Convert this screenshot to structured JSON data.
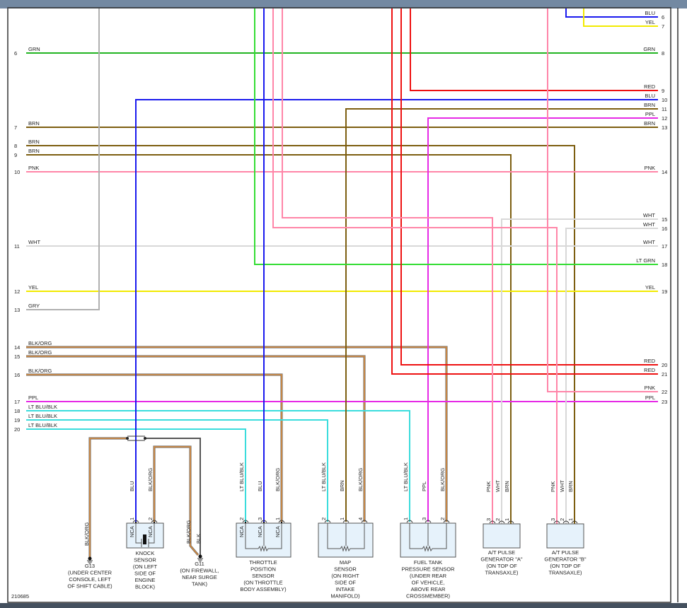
{
  "diagram_id": "210685",
  "colors": {
    "GRN": "#22b422",
    "BRN": "#7d5e10",
    "PNK": "#ff85a8",
    "WHT": "#d8d8d8",
    "YEL": "#f2ea00",
    "GRY": "#b0b0b0",
    "BLKORG": "#d88a3a",
    "PPL": "#e62ae6",
    "LTBLU": "#3adcdc",
    "BLU": "#1a1aee",
    "RED": "#ee1111",
    "LTGRN": "#33dd33",
    "BLK": "#555555"
  },
  "left_pins": [
    {
      "pin": "6",
      "label": "GRN"
    },
    {
      "pin": "7",
      "label": "BRN"
    },
    {
      "pin": "8",
      "label": "BRN"
    },
    {
      "pin": "9",
      "label": "BRN"
    },
    {
      "pin": "10",
      "label": "PNK"
    },
    {
      "pin": "11",
      "label": "WHT"
    },
    {
      "pin": "12",
      "label": "YEL"
    },
    {
      "pin": "13",
      "label": "GRY"
    },
    {
      "pin": "14",
      "label": "BLK/ORG"
    },
    {
      "pin": "15",
      "label": "BLK/ORG"
    },
    {
      "pin": "16",
      "label": "BLK/ORG"
    },
    {
      "pin": "17",
      "label": "PPL"
    },
    {
      "pin": "18",
      "label": "LT BLU/BLK"
    },
    {
      "pin": "19",
      "label": "LT BLU/BLK"
    },
    {
      "pin": "20",
      "label": "LT BLU/BLK"
    }
  ],
  "right_pins": [
    {
      "pin": "6",
      "label": "BLU"
    },
    {
      "pin": "7",
      "label": "YEL"
    },
    {
      "pin": "8",
      "label": "GRN"
    },
    {
      "pin": "9",
      "label": "RED"
    },
    {
      "pin": "10",
      "label": "BLU"
    },
    {
      "pin": "11",
      "label": "BRN"
    },
    {
      "pin": "12",
      "label": "PPL"
    },
    {
      "pin": "13",
      "label": "BRN"
    },
    {
      "pin": "14",
      "label": "PNK"
    },
    {
      "pin": "15",
      "label": "WHT"
    },
    {
      "pin": "16",
      "label": "WHT"
    },
    {
      "pin": "17",
      "label": "WHT"
    },
    {
      "pin": "18",
      "label": "LT GRN"
    },
    {
      "pin": "19",
      "label": "YEL"
    },
    {
      "pin": "20",
      "label": "RED"
    },
    {
      "pin": "21",
      "label": "RED"
    },
    {
      "pin": "22",
      "label": "PNK"
    },
    {
      "pin": "23",
      "label": "PPL"
    }
  ],
  "components": [
    {
      "id": "knock-sensor",
      "caption": [
        "KNOCK",
        "SENSOR",
        "(ON LEFT",
        "SIDE OF",
        "ENGINE",
        "BLOCK)"
      ],
      "pins": [
        {
          "num": "1",
          "wire": "BLU",
          "nca": "NCA"
        },
        {
          "num": "2",
          "wire": "BLK/ORG",
          "nca": "NCA"
        }
      ]
    },
    {
      "id": "throttle-position-sensor",
      "caption": [
        "THROTTLE",
        "POSITION",
        "SENSOR",
        "(ON THROTTLE",
        "BODY ASSEMBLY)"
      ],
      "pins": [
        {
          "num": "2",
          "wire": "LT BLU/BLK",
          "nca": "NCA"
        },
        {
          "num": "3",
          "wire": "BLU",
          "nca": "NCA"
        },
        {
          "num": "1",
          "wire": "BLK/ORG",
          "nca": "NCA"
        }
      ]
    },
    {
      "id": "map-sensor",
      "caption": [
        "MAP",
        "SENSOR",
        "(ON RIGHT",
        "SIDE OF",
        "INTAKE",
        "MANIFOLD)"
      ],
      "pins": [
        {
          "num": "2",
          "wire": "LT BLU/BLK"
        },
        {
          "num": "1",
          "wire": "BRN"
        },
        {
          "num": "4",
          "wire": "BLK/ORG"
        }
      ]
    },
    {
      "id": "fuel-tank-pressure-sensor",
      "caption": [
        "FUEL TANK",
        "PRESSURE SENSOR",
        "(UNDER REAR",
        "OF VEHICLE,",
        "ABOVE REAR",
        "CROSSMEMBER)"
      ],
      "pins": [
        {
          "num": "1",
          "wire": "LT BLU/BLK"
        },
        {
          "num": "3",
          "wire": "PPL"
        },
        {
          "num": "2",
          "wire": "BLK/ORG"
        }
      ]
    },
    {
      "id": "at-pulse-generator-a",
      "caption": [
        "A/T PULSE",
        "GENERATOR \"A\"",
        "(ON TOP OF",
        "TRANSAXLE)"
      ],
      "pins": [
        {
          "num": "3",
          "wire": "PNK"
        },
        {
          "num": "2",
          "wire": "WHT"
        },
        {
          "num": "1",
          "wire": "BRN"
        }
      ]
    },
    {
      "id": "at-pulse-generator-b",
      "caption": [
        "A/T PULSE",
        "GENERATOR \"B\"",
        "(ON TOP OF",
        "TRANSAXLE)"
      ],
      "pins": [
        {
          "num": "3",
          "wire": "PNK"
        },
        {
          "num": "2",
          "wire": "WHT"
        },
        {
          "num": "1",
          "wire": "BRN"
        }
      ]
    }
  ],
  "grounds": [
    {
      "id": "G13",
      "wires": [
        "BLK/ORG"
      ],
      "caption": [
        "G13",
        "(UNDER CENTER",
        "CONSOLE, LEFT",
        "OF SHIFT CABLE)"
      ]
    },
    {
      "id": "G11",
      "wires": [
        "BLK/ORG",
        "BLK"
      ],
      "caption": [
        "G11",
        "(ON FIREWALL,",
        "NEAR SURGE",
        "TANK)"
      ]
    }
  ]
}
